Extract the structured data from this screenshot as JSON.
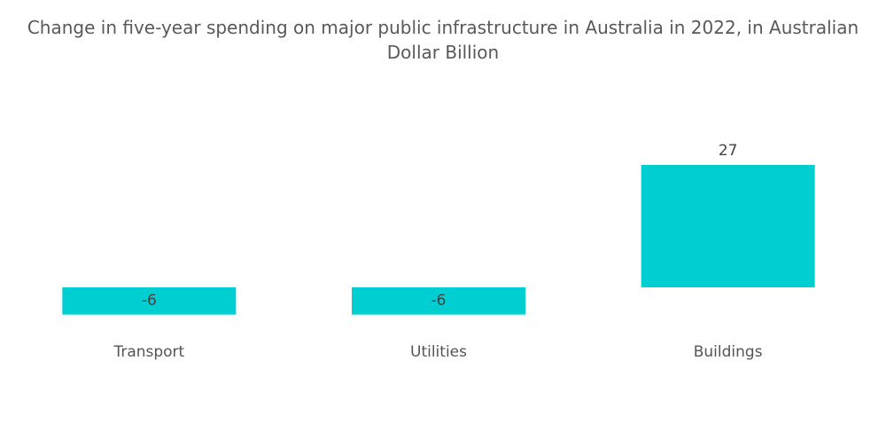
{
  "chart_data": {
    "type": "bar",
    "title_line1": "Change in five-year spending on major public infrastructure in Australia in 2022, in Australian",
    "title_line2": "Dollar Billion",
    "categories": [
      "Transport",
      "Utilities",
      "Buildings"
    ],
    "values": [
      -6,
      -6,
      27
    ],
    "data_labels": [
      "-6",
      "-6",
      "27"
    ],
    "xlabel": "",
    "ylabel": "",
    "grid": false,
    "legend": "none",
    "bar_color": "#00CED1"
  }
}
